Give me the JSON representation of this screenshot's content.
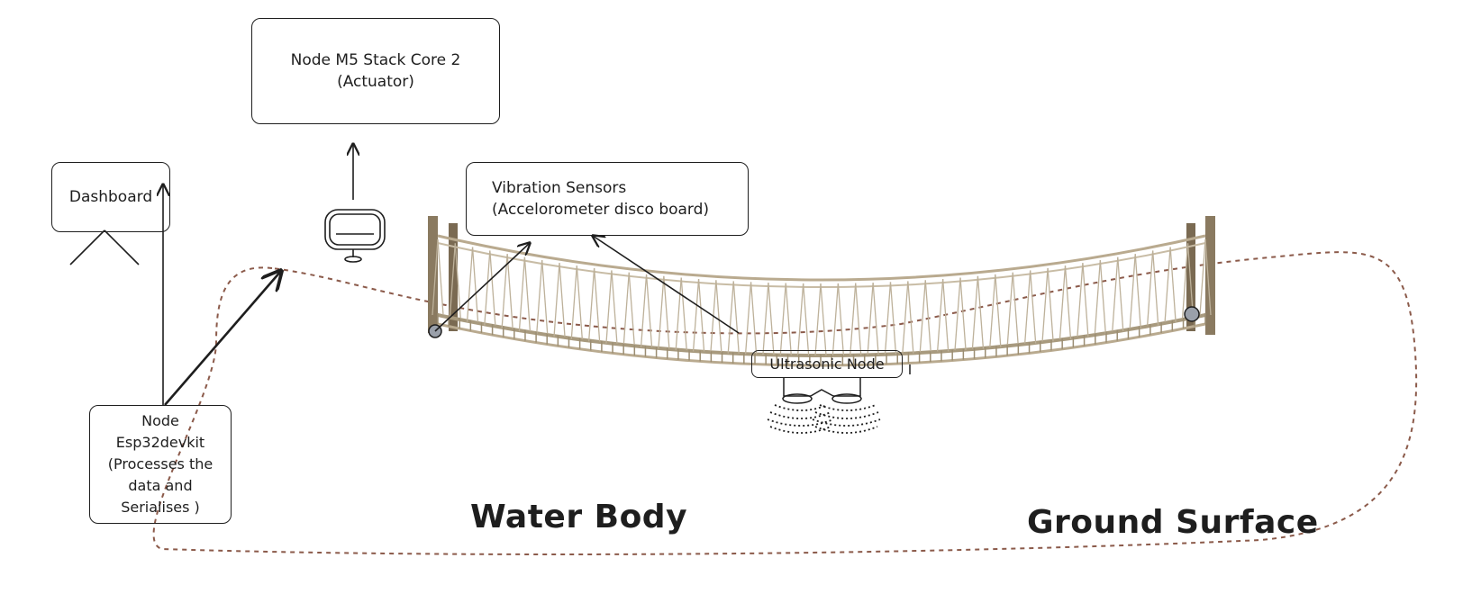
{
  "nodes": {
    "actuator": {
      "line1": "Node M5 Stack Core 2",
      "line2": "(Actuator)"
    },
    "dashboard": {
      "label": "Dashboard"
    },
    "vibration": {
      "line1": "Vibration Sensors",
      "line2": "(Accelorometer disco board)"
    },
    "esp32": {
      "line1": "Node",
      "line2": "Esp32devkit",
      "line3": "(Processes the",
      "line4": "data and",
      "line5": "Serialises )"
    },
    "ultrasonic": {
      "label": "Ultrasonic Node"
    }
  },
  "regions": {
    "water": "Water Body",
    "ground": "Ground Surface"
  },
  "icons": {
    "monitor": "monitor-icon",
    "person": "person-icon",
    "bridge": "rope-bridge-illustration",
    "sensor": "ultrasonic-sensor-icon"
  },
  "colors": {
    "stroke": "#1e1e1e",
    "boundary": "#8b5a4a",
    "rope": "#b9aa8f",
    "wood": "#8a7a60"
  }
}
